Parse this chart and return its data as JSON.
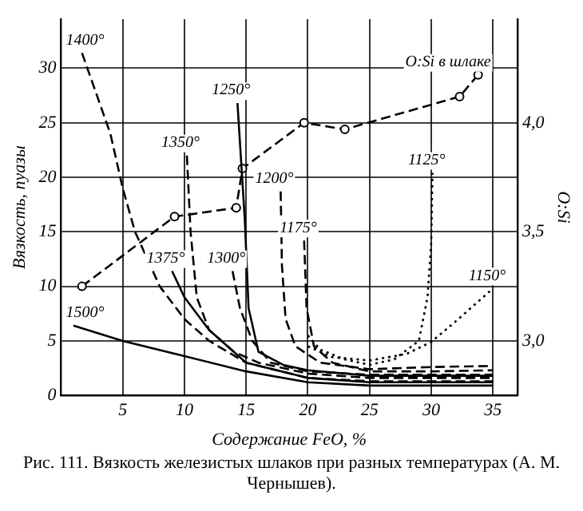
{
  "chart_data": {
    "type": "line",
    "xlabel": "Содержание FeO, %",
    "ylabel": "Вязкость, пуазы",
    "y2label": "O:Si",
    "xlim": [
      0,
      37
    ],
    "xticks": [
      5,
      10,
      15,
      20,
      25,
      30,
      35
    ],
    "ylim": [
      0,
      34.5
    ],
    "yticks": [
      0,
      5,
      10,
      15,
      20,
      25,
      30
    ],
    "y2lim": [
      2.75,
      4.475
    ],
    "y2ticks": [
      {
        "value": 3.0,
        "label": "3,0"
      },
      {
        "value": 3.5,
        "label": "3,5"
      },
      {
        "value": 4.0,
        "label": "4,0"
      }
    ],
    "grid": true,
    "legend": false,
    "marker": "none",
    "annotations": [
      "Рис. 111. Вязкость железистых шлаков при разных температурах (А. М. Чернышев)."
    ],
    "series": [
      {
        "name": "1500°",
        "color": "#000000",
        "line_style": "solid",
        "x": [
          1,
          5,
          10,
          15,
          20,
          25,
          30,
          35
        ],
        "values": [
          6.4,
          5.0,
          3.6,
          2.2,
          1.2,
          0.9,
          0.9,
          0.9
        ]
      },
      {
        "name": "1400°",
        "color": "#000000",
        "line_style": "dashed",
        "x": [
          1.7,
          4,
          5,
          6,
          8,
          10,
          12,
          15,
          20,
          25,
          30,
          35
        ],
        "values": [
          31.4,
          24,
          19,
          15,
          10,
          7,
          5,
          3,
          1.6,
          1.3,
          1.3,
          1.3
        ]
      },
      {
        "name": "1375°",
        "color": "#000000",
        "line_style": "solid",
        "x": [
          9,
          10,
          12,
          15,
          20,
          25,
          30,
          35
        ],
        "values": [
          11.4,
          9,
          6,
          3,
          1.6,
          1.2,
          1.2,
          1.2
        ]
      },
      {
        "name": "1350°",
        "color": "#000000",
        "line_style": "dashed",
        "x": [
          10.2,
          10.5,
          11,
          12,
          14,
          16,
          20,
          25,
          30,
          35
        ],
        "values": [
          22,
          15,
          9,
          6,
          4,
          3,
          2,
          1.6,
          1.6,
          1.6
        ]
      },
      {
        "name": "1300°",
        "color": "#000000",
        "line_style": "dashed",
        "x": [
          13.9,
          14.5,
          15.5,
          17,
          20,
          25,
          30,
          35
        ],
        "values": [
          11.4,
          8,
          5,
          3,
          2.2,
          1.9,
          1.9,
          1.9
        ]
      },
      {
        "name": "1250°",
        "color": "#000000",
        "line_style": "solid",
        "x": [
          14.3,
          14.9,
          15.2,
          16,
          18,
          20,
          25,
          30,
          35
        ],
        "values": [
          26.8,
          16,
          8,
          4,
          2.8,
          2.3,
          1.8,
          1.8,
          1.8
        ]
      },
      {
        "name": "1200°",
        "color": "#000000",
        "line_style": "dashed",
        "x": [
          17.8,
          17.9,
          18.2,
          19,
          21,
          25,
          30,
          35
        ],
        "values": [
          18.7,
          12,
          7,
          4.5,
          3,
          2.4,
          2.6,
          2.7
        ]
      },
      {
        "name": "1175°",
        "color": "#000000",
        "line_style": "dashed",
        "x": [
          19.7,
          19.9,
          20.5,
          22,
          25,
          30,
          35
        ],
        "values": [
          14.2,
          8,
          4.5,
          3,
          2.2,
          2.2,
          2.3
        ]
      },
      {
        "name": "1150°",
        "color": "#000000",
        "line_style": "dotted",
        "x": [
          20,
          22,
          25,
          28,
          30,
          32,
          35
        ],
        "values": [
          4.5,
          3.5,
          3.2,
          3.8,
          4.9,
          6.8,
          9.8
        ]
      },
      {
        "name": "1125°",
        "color": "#000000",
        "line_style": "dotted",
        "x": [
          20,
          21,
          23,
          25,
          27,
          29,
          29.7,
          30,
          30.1
        ],
        "values": [
          5.5,
          4.2,
          3.3,
          2.8,
          3.3,
          5,
          9,
          14,
          20.4
        ]
      },
      {
        "name": "O:Si в шлаке",
        "axis": "y2",
        "color": "#000000",
        "line_style": "dashed",
        "marker": "circle",
        "x": [
          1.7,
          9.2,
          14.2,
          14.7,
          19.7,
          23,
          32.3,
          33.8
        ],
        "values": [
          3.25,
          3.57,
          3.61,
          3.79,
          4.0,
          3.97,
          4.12,
          4.22
        ]
      }
    ]
  }
}
